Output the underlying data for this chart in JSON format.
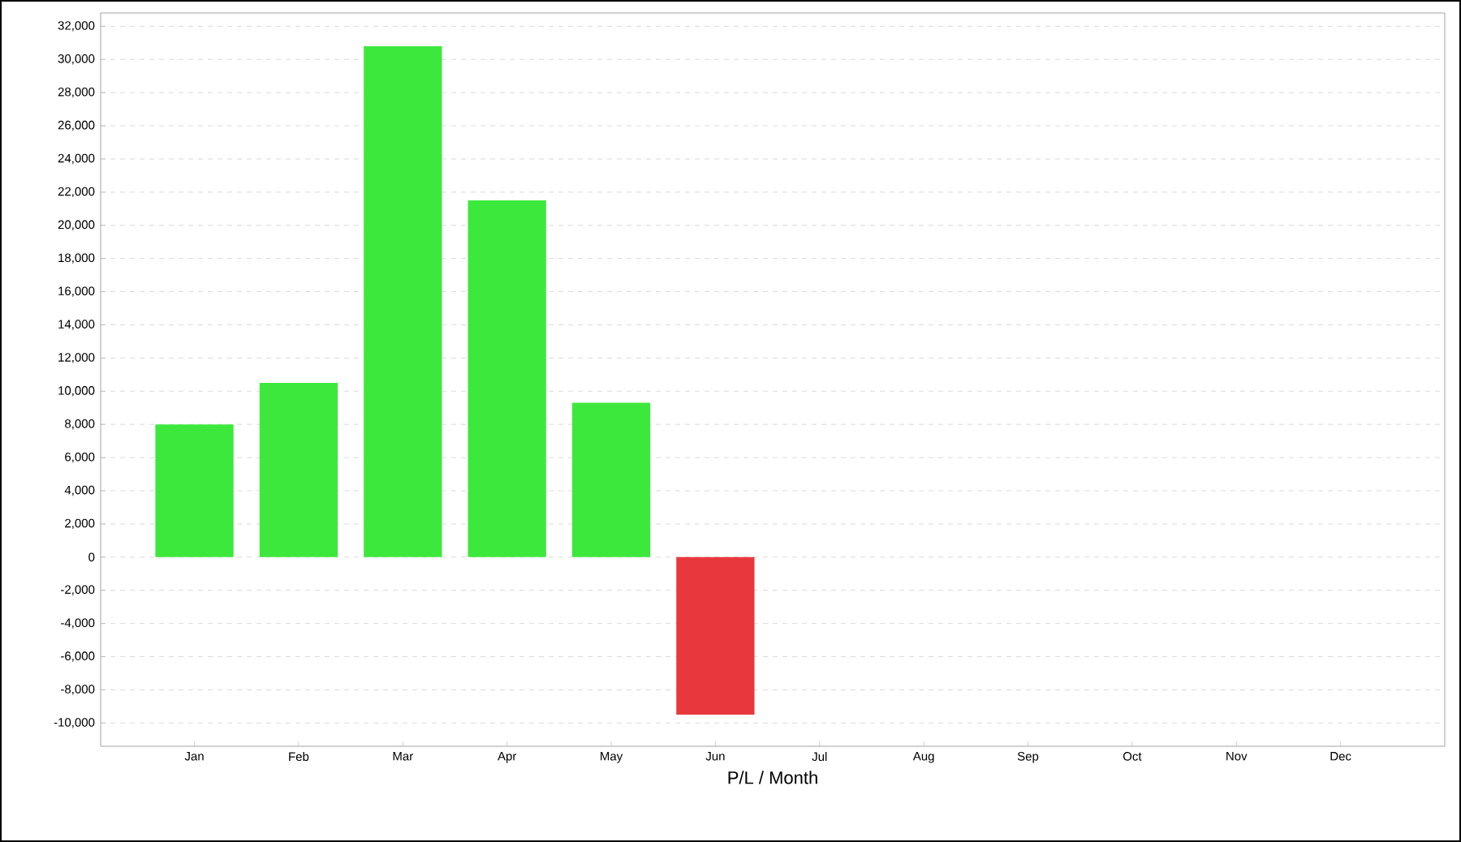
{
  "chart_data": {
    "type": "bar",
    "xlabel": "P/L / Month",
    "categories": [
      "Jan",
      "Feb",
      "Mar",
      "Apr",
      "May",
      "Jun",
      "Jul",
      "Aug",
      "Sep",
      "Oct",
      "Nov",
      "Dec"
    ],
    "values": [
      8000,
      10500,
      30800,
      21500,
      9300,
      -9500,
      null,
      null,
      null,
      null,
      null,
      null
    ],
    "colors": [
      "#3de83d",
      "#3de83d",
      "#3de83d",
      "#3de83d",
      "#3de83d",
      "#e8383d",
      null,
      null,
      null,
      null,
      null,
      null
    ],
    "ylim": [
      -11400,
      32800
    ],
    "yticks": [
      {
        "value": -10000,
        "label": "-10,000"
      },
      {
        "value": -8000,
        "label": "-8,000"
      },
      {
        "value": -6000,
        "label": "-6,000"
      },
      {
        "value": -4000,
        "label": "-4,000"
      },
      {
        "value": -2000,
        "label": "-2,000"
      },
      0,
      {
        "value": 2000,
        "label": "2,000"
      },
      {
        "value": 4000,
        "label": "4,000"
      },
      {
        "value": 6000,
        "label": "6,000"
      },
      {
        "value": 8000,
        "label": "8,000"
      },
      {
        "value": 10000,
        "label": "10,000"
      },
      {
        "value": 12000,
        "label": "12,000"
      },
      {
        "value": 14000,
        "label": "14,000"
      },
      {
        "value": 16000,
        "label": "16,000"
      },
      {
        "value": 18000,
        "label": "18,000"
      },
      {
        "value": 20000,
        "label": "20,000"
      },
      {
        "value": 22000,
        "label": "22,000"
      },
      {
        "value": 24000,
        "label": "24,000"
      },
      {
        "value": 26000,
        "label": "26,000"
      },
      {
        "value": 28000,
        "label": "28,000"
      },
      {
        "value": 30000,
        "label": "30,000"
      },
      {
        "value": 32000,
        "label": "32,000"
      }
    ],
    "grid": "y"
  }
}
